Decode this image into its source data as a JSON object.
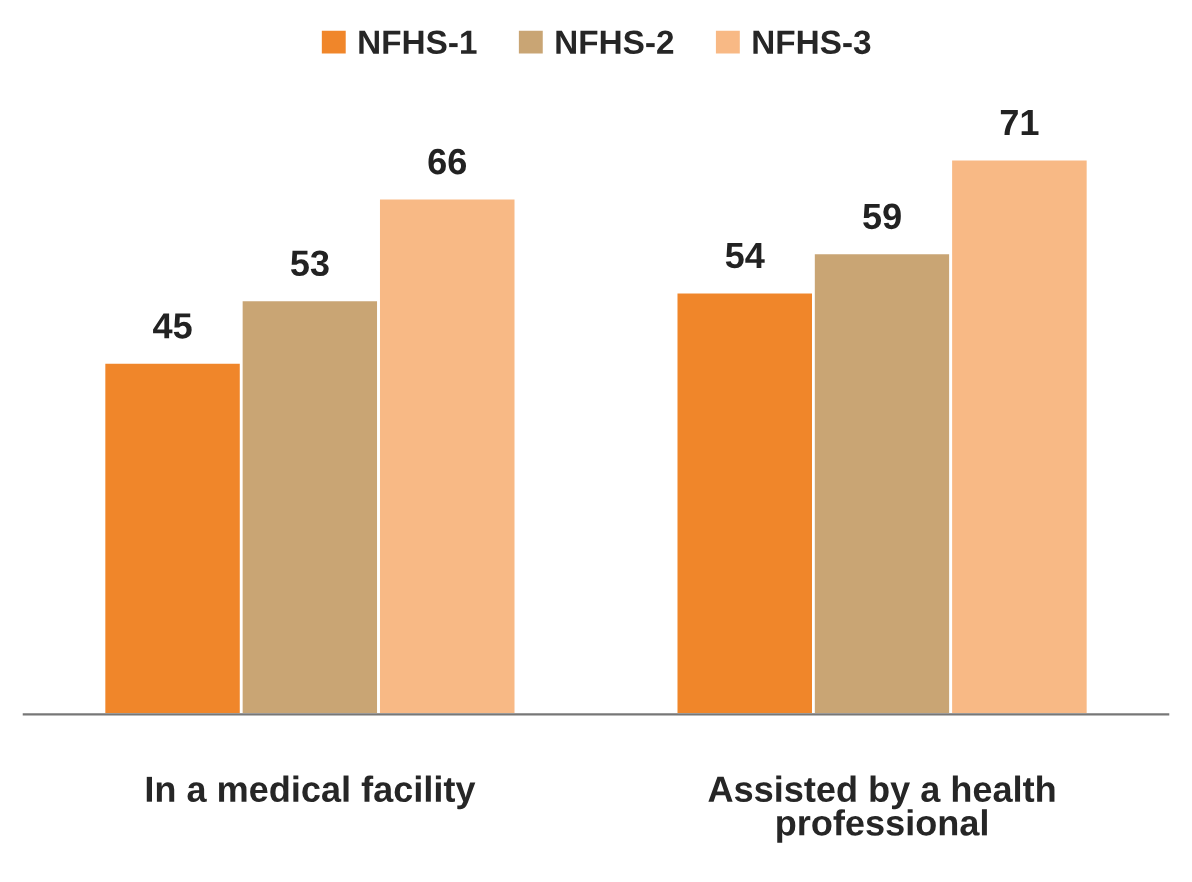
{
  "chart_data": {
    "type": "bar",
    "categories": [
      "In a medical facility",
      "Assisted by a health professional"
    ],
    "series": [
      {
        "name": "NFHS-1",
        "color": "#f0862a",
        "values": [
          45,
          54
        ]
      },
      {
        "name": "NFHS-2",
        "color": "#c9a574",
        "values": [
          53,
          59
        ]
      },
      {
        "name": "NFHS-3",
        "color": "#f8b985",
        "values": [
          66,
          71
        ]
      }
    ],
    "data_labels": true,
    "legend": "top",
    "grid": false
  }
}
